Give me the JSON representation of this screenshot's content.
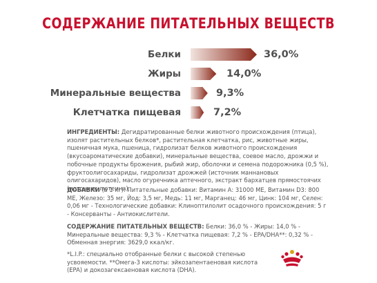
{
  "title": "СОДЕРЖАНИЕ ПИТАТЕЛЬНЫХ ВЕЩЕСТВ",
  "colors": {
    "accent": "#c8102e",
    "bar_light": "#f1e3de",
    "bar_dark": "#8c2a1c",
    "text": "#555555"
  },
  "nutrients": [
    {
      "label": "Белки",
      "value": "36,0%",
      "percent": 36.0
    },
    {
      "label": "Жиры",
      "value": "14,0%",
      "percent": 14.0
    },
    {
      "label": "Минеральные вещества",
      "value": "9,3%",
      "percent": 9.3
    },
    {
      "label": "Клетчатка пищевая",
      "value": "7,2%",
      "percent": 7.2
    }
  ],
  "ingredients": {
    "heading": "ИНГРЕДИЕНТЫ:",
    "text": "Дегидратированные белки животного происхождения (птица), изолят растительных белков*, растительная клетчатка, рис, животные жиры, пшеничная мука, пшеница, гидролизат белков животного происхождения (вкусоароматические добавки), минеральные вещества, соевое масло, дрожжи и побочные продукты брожения, рыбий жир, оболочки и семена подорожника (0,5 %), фруктоолигосахариды, гидролизат дрожжей (источник маннановых олигосахаридов), масло огуречника аптечного, экстракт бархатцев прямостоячих (источник лютеина)."
  },
  "additives": {
    "heading": "ДОБАВКИ",
    "text": "(в 1 кг): Питательные добавки: Витамин А: 31000 МЕ, Витамин D3: 800 МЕ, Железо: 35 мг, Йод: 3,5 мг, Медь: 11 мг, Марганец: 46 мг, Цинк: 104 мг, Селен: 0,06 мг - Технологические добавки: Клиноптилолит осадочного происхождения: 5 г - Консерванты - Антиокислители."
  },
  "nutrition": {
    "heading": "СОДЕРЖАНИЕ ПИТАТЕЛЬНЫХ ВЕЩЕСТВ:",
    "text": "Белки: 36,0 % - Жиры: 14,0 % - Минеральные вещества: 9,3 % - Клетчатка пищевая: 7,2 % - EPA/DHA**: 0,32 % - Обменная энергия: 3629,0 ккал/кг."
  },
  "footnotes": {
    "text": "*L.I.P.: специально отобранные белки с высокой степенью усвояемости. **Омега-3 кислоты: эйкозапентаеновая кислота (EPA) и докозагексаеновая кислота (DHA)."
  },
  "logo": {
    "icon": "royal-canin-crown-icon"
  }
}
